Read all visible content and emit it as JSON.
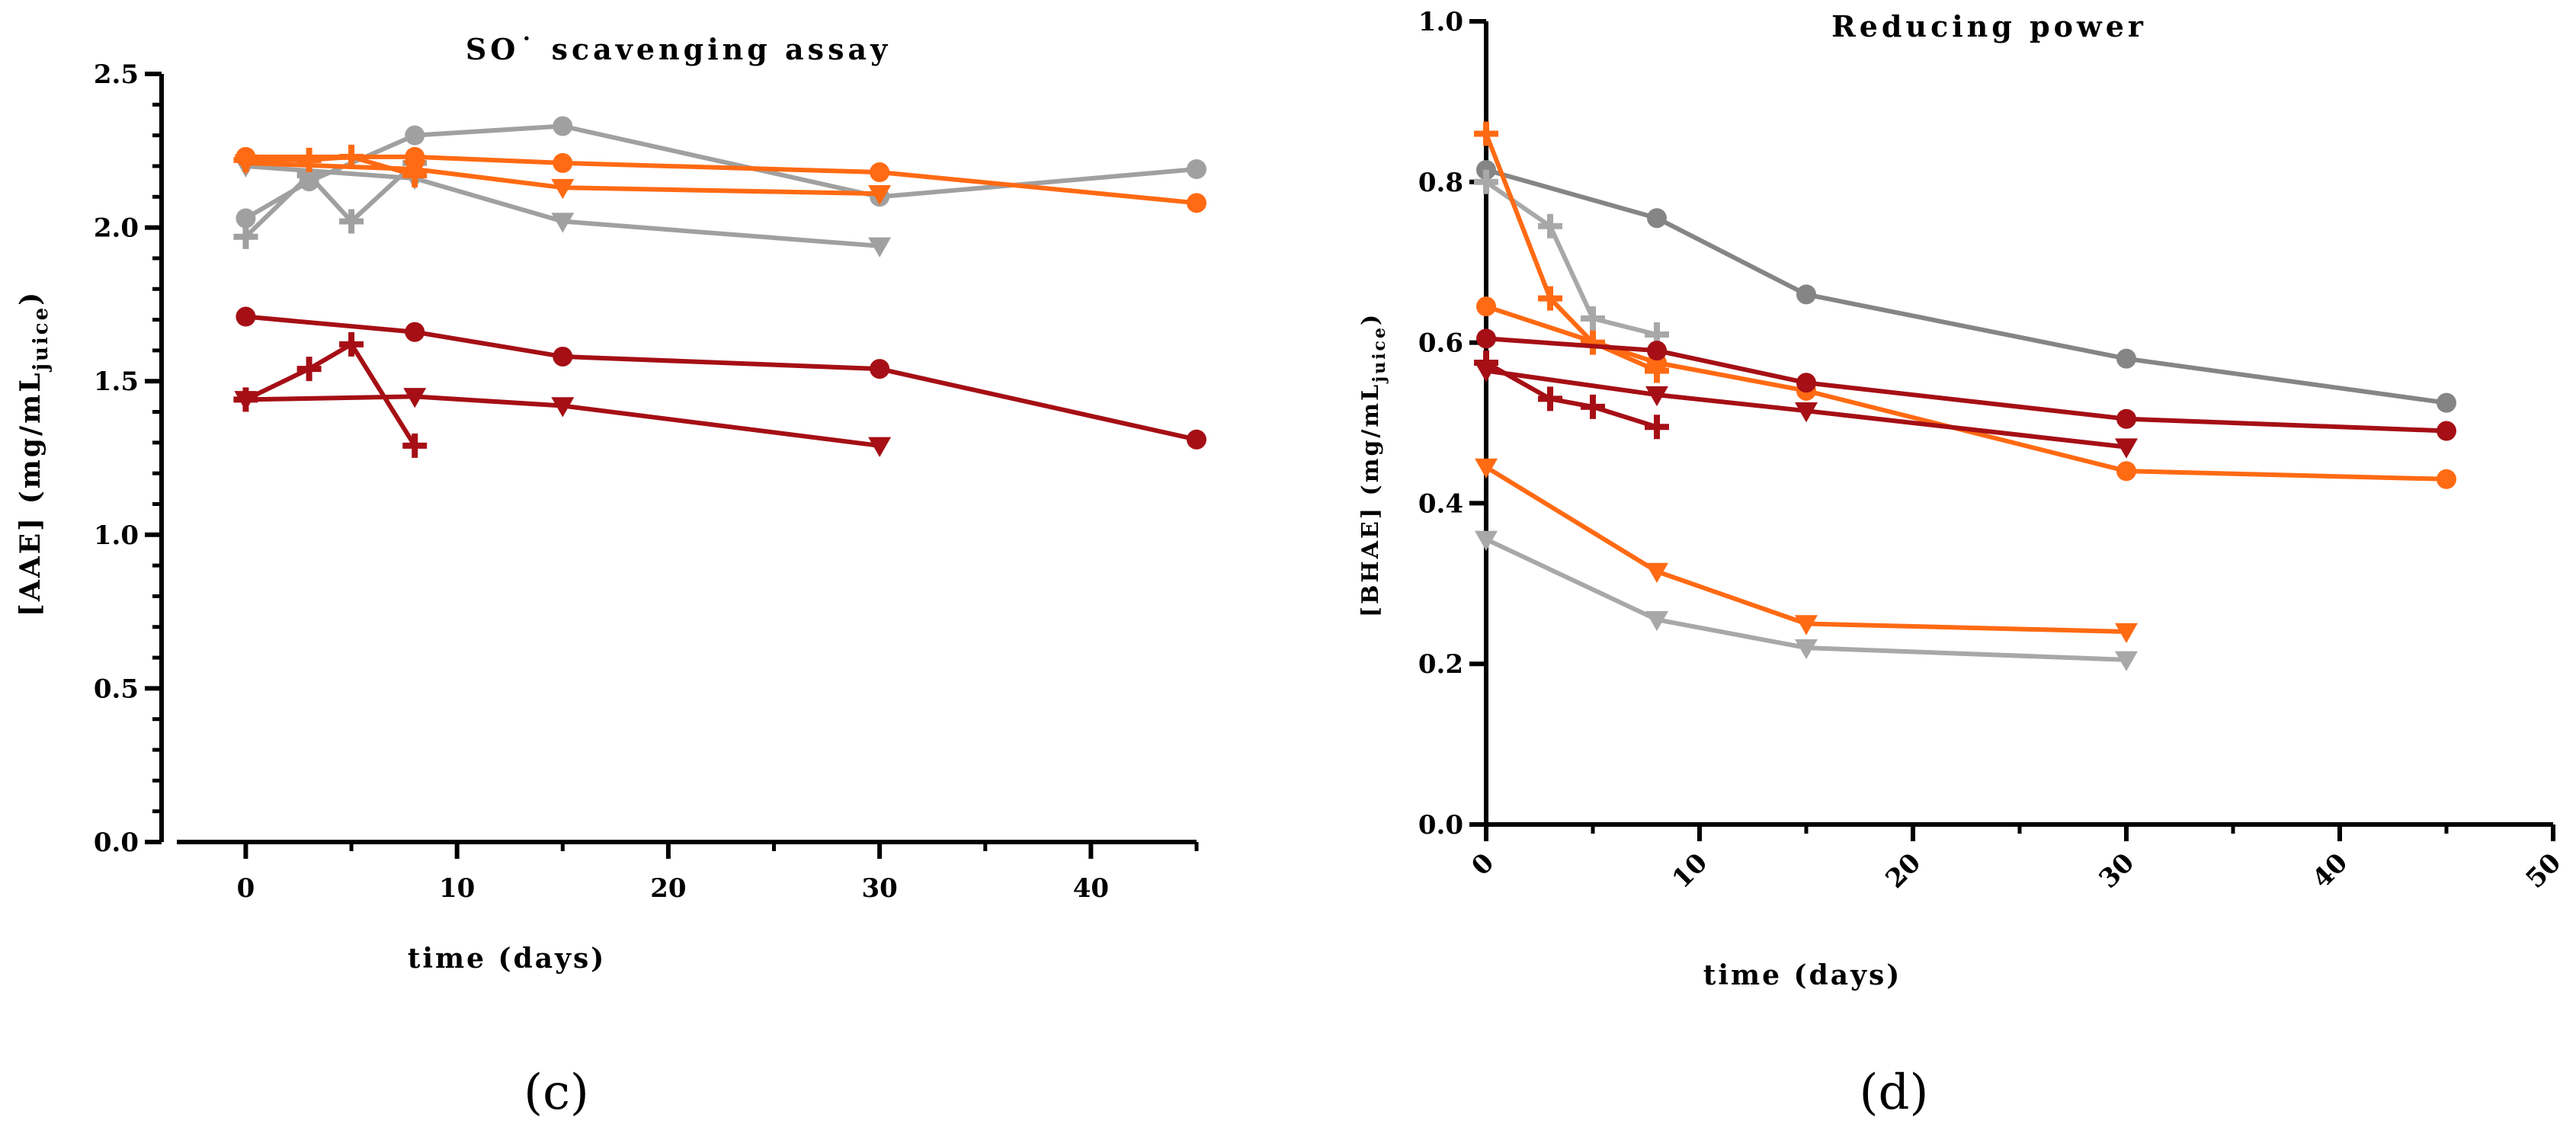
{
  "chart_data": [
    {
      "type": "line",
      "panel_label": "(c)",
      "title": "SO˙ scavenging assay",
      "xlabel": "time (days)",
      "ylabel": "[AAE] (mg/mL",
      "ylabel_sub": "juice",
      "ylabel_close": ")",
      "xlim": [
        -2,
        45
      ],
      "ylim": [
        0.0,
        2.5
      ],
      "xticks": [
        0,
        10,
        20,
        30,
        40
      ],
      "xtick_labels": [
        "0",
        "10",
        "20",
        "30",
        "40"
      ],
      "yticks": [
        0.0,
        0.5,
        1.0,
        1.5,
        2.0,
        2.5
      ],
      "ytick_labels": [
        "0.0",
        "0.5",
        "1.0",
        "1.5",
        "2.0",
        "2.5"
      ],
      "series": [
        {
          "name": "gray circle",
          "color": "#a0a0a0",
          "marker": "circle",
          "x": [
            0,
            3,
            8,
            15,
            30,
            45
          ],
          "y": [
            2.03,
            2.15,
            2.3,
            2.33,
            2.1,
            2.19
          ]
        },
        {
          "name": "gray triangle",
          "color": "#a0a0a0",
          "marker": "triangle",
          "x": [
            0,
            8,
            15,
            30
          ],
          "y": [
            2.2,
            2.16,
            2.02,
            1.94
          ]
        },
        {
          "name": "gray cross",
          "color": "#a0a0a0",
          "marker": "cross",
          "x": [
            0,
            3,
            5,
            8
          ],
          "y": [
            1.97,
            2.17,
            2.02,
            2.21
          ]
        },
        {
          "name": "orange circle",
          "color": "#ff6a13",
          "marker": "circle",
          "x": [
            0,
            8,
            15,
            30,
            45
          ],
          "y": [
            2.23,
            2.23,
            2.21,
            2.18,
            2.08
          ]
        },
        {
          "name": "orange triangle",
          "color": "#ff6a13",
          "marker": "triangle",
          "x": [
            0,
            8,
            15,
            30
          ],
          "y": [
            2.21,
            2.19,
            2.13,
            2.11
          ]
        },
        {
          "name": "orange cross",
          "color": "#ff6a13",
          "marker": "cross",
          "x": [
            0,
            3,
            5,
            8
          ],
          "y": [
            2.22,
            2.22,
            2.23,
            2.17
          ]
        },
        {
          "name": "red circle",
          "color": "#a50f15",
          "marker": "circle",
          "x": [
            0,
            8,
            15,
            30,
            45
          ],
          "y": [
            1.71,
            1.66,
            1.58,
            1.54,
            1.31
          ]
        },
        {
          "name": "red triangle",
          "color": "#a50f15",
          "marker": "triangle",
          "x": [
            0,
            8,
            15,
            30
          ],
          "y": [
            1.44,
            1.45,
            1.42,
            1.29
          ]
        },
        {
          "name": "red cross",
          "color": "#a50f15",
          "marker": "cross",
          "x": [
            0,
            3,
            5,
            8
          ],
          "y": [
            1.44,
            1.54,
            1.62,
            1.29
          ]
        }
      ]
    },
    {
      "type": "line",
      "panel_label": "(d)",
      "title": "Reducing power",
      "xlabel": "time (days)",
      "ylabel": "[BHAE] (mg/mL",
      "ylabel_sub": "juice",
      "ylabel_close": ")",
      "xlim": [
        0,
        50
      ],
      "ylim": [
        0.0,
        1.0
      ],
      "xticks": [
        0,
        10,
        20,
        30,
        40,
        50
      ],
      "xtick_labels": [
        "0",
        "10",
        "20",
        "30",
        "40",
        "50"
      ],
      "yticks": [
        0.0,
        0.2,
        0.4,
        0.6,
        0.8,
        1.0
      ],
      "ytick_labels": [
        "0.0",
        "0.2",
        "0.4",
        "0.6",
        "0.8",
        "1.0"
      ],
      "series": [
        {
          "name": "dark gray circle",
          "color": "#858585",
          "marker": "circle",
          "x": [
            0,
            8,
            15,
            30,
            45
          ],
          "y": [
            0.815,
            0.755,
            0.66,
            0.58,
            0.525
          ]
        },
        {
          "name": "gray cross",
          "color": "#a8a8a8",
          "marker": "cross",
          "x": [
            0,
            3,
            5,
            8
          ],
          "y": [
            0.8,
            0.745,
            0.63,
            0.61
          ]
        },
        {
          "name": "gray triangle",
          "color": "#a8a8a8",
          "marker": "triangle",
          "x": [
            0,
            8,
            15,
            30
          ],
          "y": [
            0.355,
            0.255,
            0.22,
            0.205
          ]
        },
        {
          "name": "orange cross",
          "color": "#ff6a13",
          "marker": "cross",
          "x": [
            0,
            3,
            5,
            8
          ],
          "y": [
            0.86,
            0.655,
            0.6,
            0.565
          ]
        },
        {
          "name": "orange circle",
          "color": "#ff6a13",
          "marker": "circle",
          "x": [
            0,
            8,
            15,
            30,
            45
          ],
          "y": [
            0.645,
            0.575,
            0.54,
            0.44,
            0.43
          ]
        },
        {
          "name": "orange triangle",
          "color": "#ff6a13",
          "marker": "triangle",
          "x": [
            0,
            8,
            15,
            30
          ],
          "y": [
            0.445,
            0.315,
            0.25,
            0.24
          ]
        },
        {
          "name": "red circle",
          "color": "#a50f15",
          "marker": "circle",
          "x": [
            0,
            8,
            15,
            30,
            45
          ],
          "y": [
            0.605,
            0.59,
            0.55,
            0.505,
            0.49
          ]
        },
        {
          "name": "red triangle",
          "color": "#a50f15",
          "marker": "triangle",
          "x": [
            0,
            8,
            15,
            30
          ],
          "y": [
            0.565,
            0.535,
            0.515,
            0.47
          ]
        },
        {
          "name": "red cross",
          "color": "#a50f15",
          "marker": "cross",
          "x": [
            0,
            3,
            5,
            8
          ],
          "y": [
            0.575,
            0.53,
            0.52,
            0.495
          ]
        }
      ]
    }
  ]
}
